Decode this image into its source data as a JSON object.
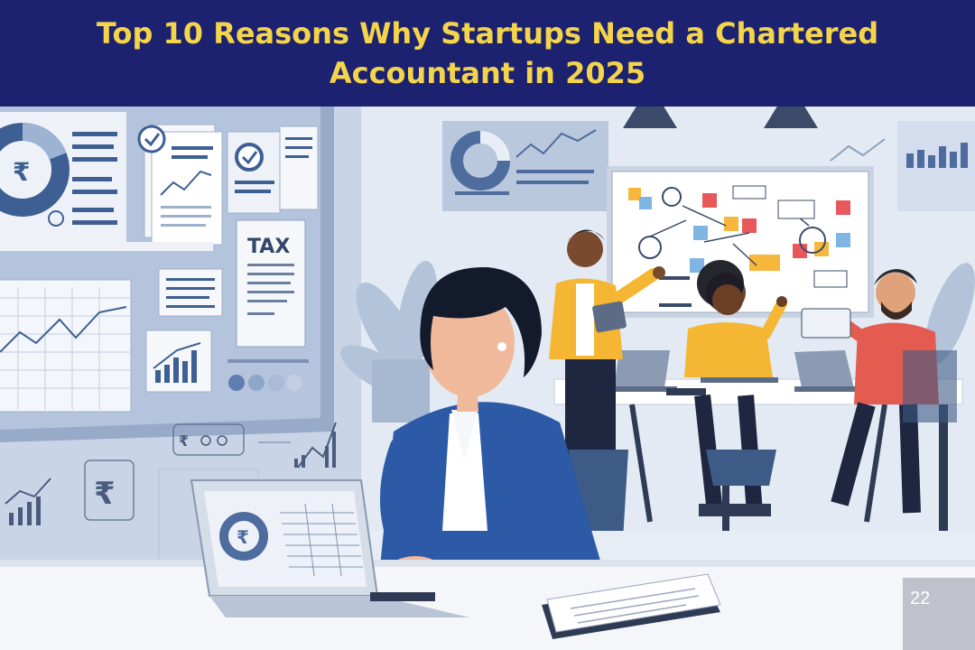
{
  "header": {
    "title": "Top 10 Reasons Why Startups Need a Chartered Accountant in 2025",
    "background_color": "#1c2170",
    "title_color": "#f3d44b"
  },
  "illustration": {
    "tax_document_label": "TAX",
    "currency_symbol": "₹",
    "page_number": "22",
    "icons": [
      "rupee-icon",
      "check-icon",
      "bar-chart-icon",
      "line-chart-icon",
      "donut-chart-icon",
      "pendant-lamp-icon",
      "laptop-icon",
      "whiteboard-icon",
      "plant-icon"
    ]
  }
}
